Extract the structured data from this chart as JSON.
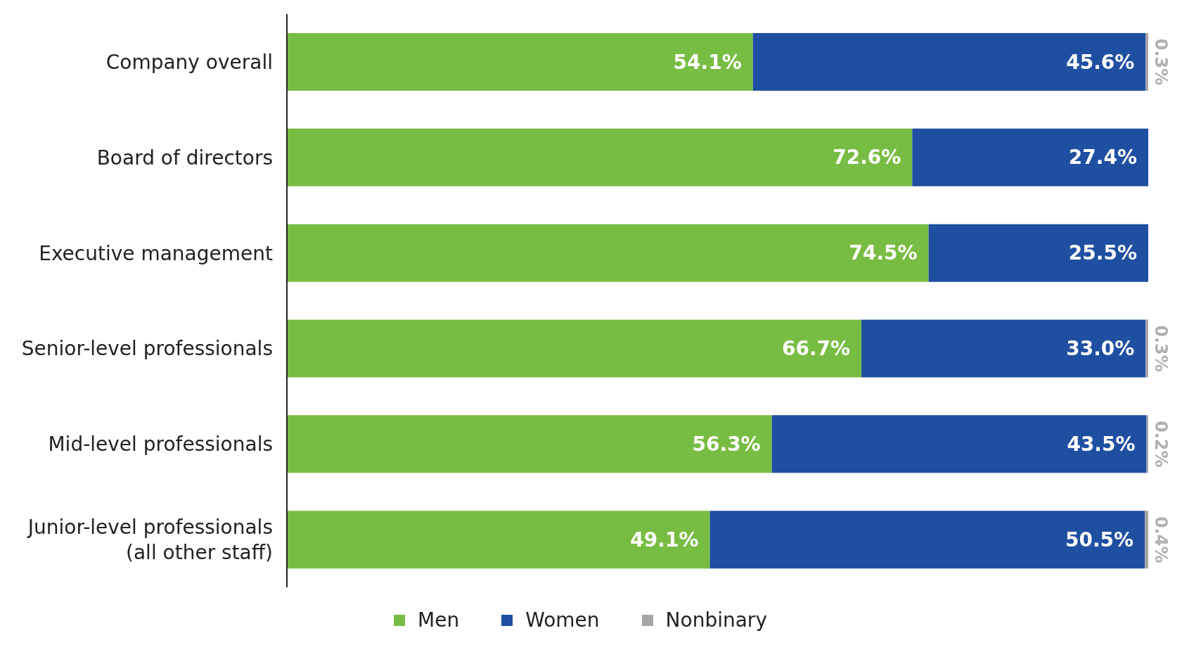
{
  "chart_data": {
    "type": "bar",
    "orientation": "horizontal",
    "stacked": true,
    "categories": [
      "Company overall",
      "Board of directors",
      "Executive management",
      "Senior-level professionals",
      "Mid-level professionals",
      "Junior-level professionals (all other staff)"
    ],
    "series": [
      {
        "name": "Men",
        "color": "#78bd43",
        "values": [
          54.1,
          72.6,
          74.5,
          66.7,
          56.3,
          49.1
        ],
        "value_labels": [
          "54.1%",
          "72.6%",
          "74.5%",
          "66.7%",
          "56.3%",
          "49.1%"
        ]
      },
      {
        "name": "Women",
        "color": "#1f4fa1",
        "values": [
          45.6,
          27.4,
          25.5,
          33.0,
          43.5,
          50.5
        ],
        "value_labels": [
          "45.6%",
          "27.4%",
          "25.5%",
          "33.0%",
          "43.5%",
          "50.5%"
        ]
      },
      {
        "name": "Nonbinary",
        "color": "#a6a6a6",
        "values": [
          0.3,
          null,
          null,
          0.3,
          0.2,
          0.4
        ],
        "value_labels": [
          "0.3%",
          null,
          null,
          "0.3%",
          "0.2%",
          "0.4%"
        ]
      }
    ],
    "legend": "bottom"
  }
}
